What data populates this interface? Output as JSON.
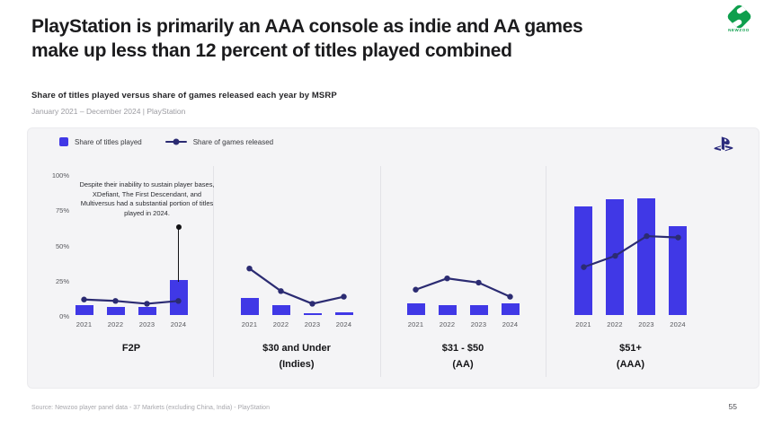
{
  "page": {
    "title": "PlayStation is primarily an AAA console as indie and AA games\nmake up less than 12 percent of titles played combined"
  },
  "brand": {
    "logo_text": "NEWZOO"
  },
  "legend": {
    "titles_played": "Share of titles played",
    "games_released": "Share of games released"
  },
  "chart_data": {
    "type": "bar",
    "subtype": "small-multiples bar + line combo",
    "title": "Share of titles played versus share of games released each year by MSRP",
    "period": "January 2021 – December 2024 | PlayStation",
    "unit": "percent",
    "ylim": [
      0,
      100
    ],
    "grid": false,
    "legend_position": "top-left",
    "yticks": [
      {
        "label": "100%",
        "value": 100
      },
      {
        "label": "75%",
        "value": 75
      },
      {
        "label": "50%",
        "value": 50
      },
      {
        "label": "25%",
        "value": 25
      },
      {
        "label": "0%",
        "value": 0
      }
    ],
    "x": [
      "2021",
      "2022",
      "2023",
      "2024"
    ],
    "series_names": [
      "Share of titles played (bars)",
      "Share of games released (line)"
    ],
    "panels": [
      {
        "key": "f2p",
        "label": "F2P",
        "sublabel": "",
        "bars": [
          7,
          6,
          6,
          25
        ],
        "line": [
          11,
          10,
          8,
          10
        ]
      },
      {
        "key": "indies",
        "label": "$30 and Under",
        "sublabel": "(Indies)",
        "bars": [
          12,
          7,
          1,
          2
        ],
        "line": [
          33,
          17,
          8,
          13
        ]
      },
      {
        "key": "aa",
        "label": "$31 - $50",
        "sublabel": "(AA)",
        "bars": [
          8,
          7,
          7,
          8
        ],
        "line": [
          18,
          26,
          23,
          13
        ]
      },
      {
        "key": "aaa",
        "label": "$51+",
        "sublabel": "(AAA)",
        "bars": [
          77,
          82,
          83,
          63
        ],
        "line": [
          34,
          42,
          56,
          55
        ]
      }
    ],
    "annotation": {
      "text": "Despite their inability to sustain player bases, XDefiant, The First Descendant, and Multiversus had a substantial portion of titles played in 2024.",
      "panel": "f2p",
      "x": "2024",
      "pointer_top_pct": 64
    },
    "colors": {
      "bar": "#4038E6",
      "line": "#2B2B72",
      "annotation": "#121214",
      "newzoo_green": "#0E9F4D",
      "playstation_navy": "#2B2B7D"
    }
  },
  "footer": {
    "source": "Source: Newzoo player panel data - 37 Markets (excluding China, India) - PlayStation",
    "page_number": "55"
  }
}
